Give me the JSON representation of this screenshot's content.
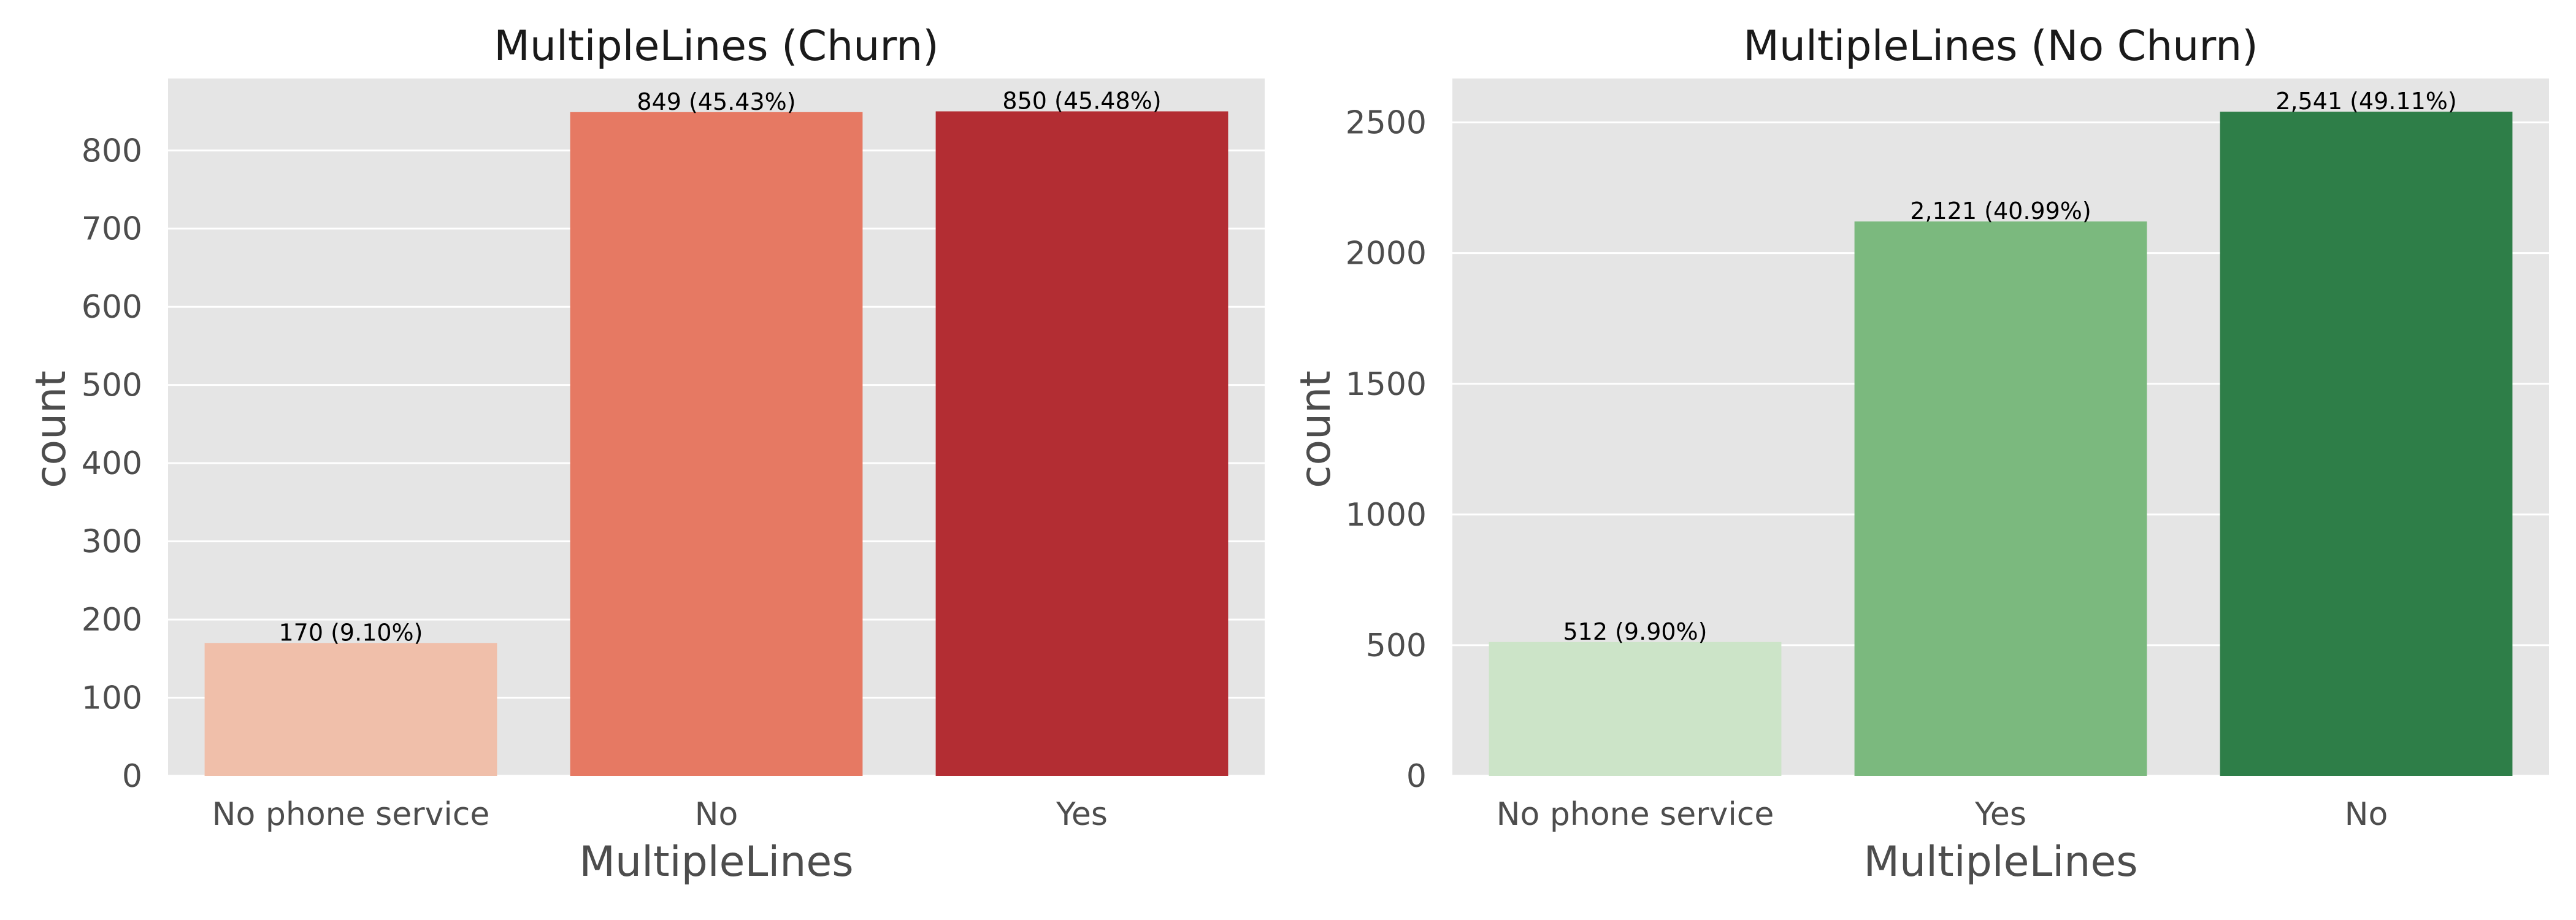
{
  "chart_data": [
    {
      "type": "bar",
      "title": "MultipleLines (Churn)",
      "xlabel": "MultipleLines",
      "ylabel": "count",
      "categories": [
        "No phone service",
        "No",
        "Yes"
      ],
      "values": [
        170,
        849,
        850
      ],
      "data_labels": [
        "170 (9.10%)",
        "849 (45.43%)",
        "850 (45.48%)"
      ],
      "colors": [
        "#f0bfaa",
        "#e67963",
        "#b32d33"
      ],
      "ylim": [
        0,
        892
      ],
      "yticks": [
        0,
        100,
        200,
        300,
        400,
        500,
        600,
        700,
        800
      ],
      "grid": true,
      "background": "#e5e5e5"
    },
    {
      "type": "bar",
      "title": "MultipleLines (No Churn)",
      "xlabel": "MultipleLines",
      "ylabel": "count",
      "categories": [
        "No phone service",
        "Yes",
        "No"
      ],
      "values": [
        512,
        2121,
        2541
      ],
      "data_labels": [
        "512 (9.90%)",
        "2,121 (40.99%)",
        "2,541 (49.11%)"
      ],
      "colors": [
        "#cce4c8",
        "#7bb97e",
        "#2e7e48"
      ],
      "ylim": [
        0,
        2668
      ],
      "yticks": [
        0,
        500,
        1000,
        1500,
        2000,
        2500
      ],
      "grid": true,
      "background": "#e5e5e5"
    }
  ]
}
